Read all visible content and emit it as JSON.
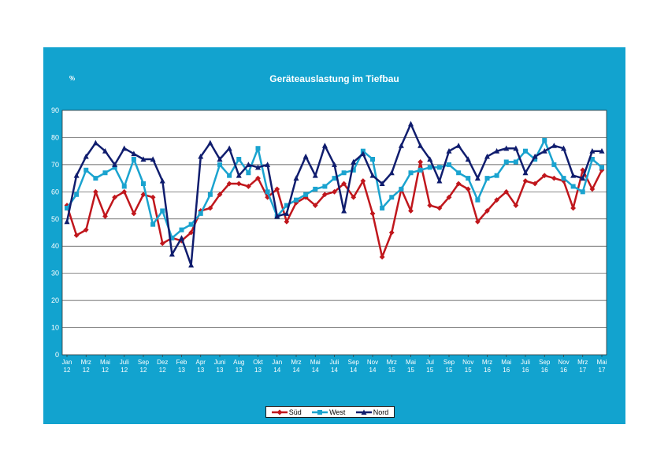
{
  "chart_data": {
    "type": "line",
    "title": "Geräteauslastung im Tiefbau",
    "ylabel": "%",
    "ylim": [
      0,
      90
    ],
    "yticks": [
      0,
      10,
      20,
      30,
      40,
      50,
      60,
      70,
      80,
      90
    ],
    "grid": true,
    "legend_position": "bottom",
    "x_tick_labels": [
      [
        "Jan",
        "12"
      ],
      [
        "Mrz",
        "12"
      ],
      [
        "Mai",
        "12"
      ],
      [
        "Juli",
        "12"
      ],
      [
        "Sep",
        "12"
      ],
      [
        "Dez",
        "12"
      ],
      [
        "Feb",
        "13"
      ],
      [
        "Apr",
        "13"
      ],
      [
        "Juni",
        "13"
      ],
      [
        "Aug",
        "13"
      ],
      [
        "Okt",
        "13"
      ],
      [
        "Jan",
        "14"
      ],
      [
        "Mrz",
        "14"
      ],
      [
        "Mai",
        "14"
      ],
      [
        "Juli",
        "14"
      ],
      [
        "Sep",
        "14"
      ],
      [
        "Nov",
        "14"
      ],
      [
        "Mrz",
        "15"
      ],
      [
        "Mai",
        "15"
      ],
      [
        "Jul",
        "15"
      ],
      [
        "Sep",
        "15"
      ],
      [
        "Nov",
        "15"
      ],
      [
        "Mrz",
        "16"
      ],
      [
        "Mai",
        "16"
      ],
      [
        "Juli",
        "16"
      ],
      [
        "Sep",
        "16"
      ],
      [
        "Nov",
        "16"
      ],
      [
        "Mrz",
        "17"
      ],
      [
        "Mai",
        "17"
      ]
    ],
    "n_points": 57,
    "series": [
      {
        "name": "Süd",
        "color": "#c0161c",
        "marker": "diamond",
        "values": [
          55,
          44,
          46,
          60,
          51,
          58,
          60,
          52,
          59,
          58,
          41,
          43,
          42,
          45,
          53,
          54,
          59,
          63,
          63,
          62,
          65,
          58,
          61,
          49,
          56,
          58,
          55,
          59,
          60,
          63,
          58,
          64,
          52,
          36,
          45,
          61,
          53,
          71,
          55,
          54,
          58,
          63,
          61,
          49,
          53,
          57,
          60,
          55,
          64,
          63,
          66,
          65,
          64,
          54,
          68,
          61,
          68
        ]
      },
      {
        "name": "West",
        "color": "#1aa3cf",
        "marker": "square",
        "values": [
          54,
          59,
          68,
          65,
          67,
          69,
          62,
          72,
          63,
          48,
          53,
          43,
          46,
          48,
          52,
          59,
          70,
          66,
          72,
          67,
          76,
          60,
          51,
          55,
          57,
          59,
          61,
          62,
          65,
          67,
          68,
          75,
          72,
          54,
          58,
          61,
          67,
          68,
          69,
          69,
          70,
          67,
          65,
          57,
          65,
          66,
          71,
          71,
          75,
          72,
          79,
          70,
          65,
          62,
          60,
          72,
          69
        ]
      },
      {
        "name": "Nord",
        "color": "#101d6e",
        "marker": "triangle",
        "values": [
          49,
          66,
          73,
          78,
          75,
          70,
          76,
          74,
          72,
          72,
          64,
          37,
          43,
          33,
          73,
          78,
          72,
          76,
          66,
          70,
          69,
          70,
          51,
          52,
          65,
          73,
          66,
          77,
          70,
          53,
          71,
          74,
          66,
          63,
          67,
          77,
          85,
          77,
          72,
          64,
          75,
          77,
          72,
          65,
          73,
          75,
          76,
          76,
          67,
          73,
          75,
          77,
          76,
          66,
          65,
          75,
          75
        ]
      }
    ]
  }
}
